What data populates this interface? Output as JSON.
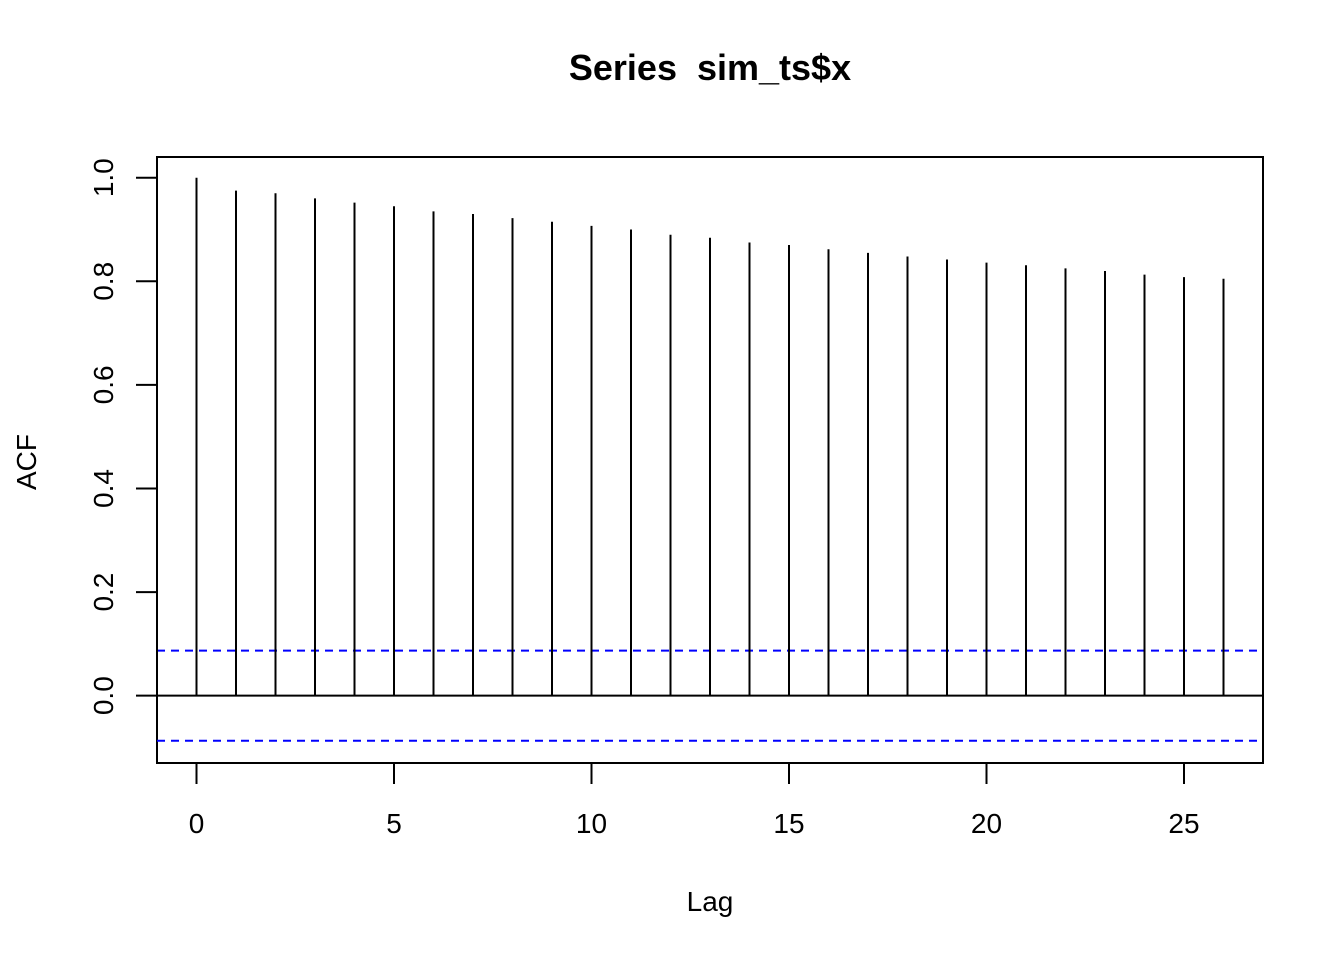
{
  "chart_data": {
    "type": "bar",
    "title": "Series  sim_ts$x",
    "xlabel": "Lag",
    "ylabel": "ACF",
    "xlim": [
      -1,
      27
    ],
    "ylim": [
      -0.13,
      1.04
    ],
    "x_ticks": [
      0,
      5,
      10,
      15,
      20,
      25
    ],
    "x_tick_labels": [
      "0",
      "5",
      "10",
      "15",
      "20",
      "25"
    ],
    "y_ticks": [
      0.0,
      0.2,
      0.4,
      0.6,
      0.8,
      1.0
    ],
    "y_tick_labels": [
      "0.0",
      "0.2",
      "0.4",
      "0.6",
      "0.8",
      "1.0"
    ],
    "lags": [
      0,
      1,
      2,
      3,
      4,
      5,
      6,
      7,
      8,
      9,
      10,
      11,
      12,
      13,
      14,
      15,
      16,
      17,
      18,
      19,
      20,
      21,
      22,
      23,
      24,
      25,
      26
    ],
    "acf": [
      1.0,
      0.975,
      0.97,
      0.96,
      0.952,
      0.945,
      0.935,
      0.93,
      0.922,
      0.915,
      0.907,
      0.9,
      0.89,
      0.884,
      0.875,
      0.87,
      0.862,
      0.855,
      0.848,
      0.842,
      0.836,
      0.831,
      0.825,
      0.82,
      0.813,
      0.808,
      0.805
    ],
    "confidence_bound": 0.087,
    "confidence_color": "#0000FF",
    "grid": false
  }
}
